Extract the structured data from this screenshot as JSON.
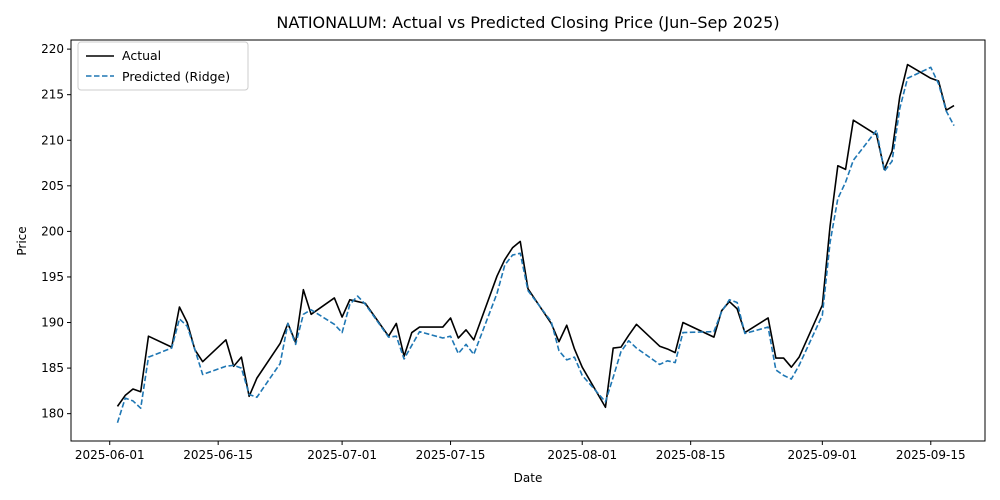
{
  "chart_data": {
    "type": "line",
    "title": "NATIONALUM: Actual vs Predicted Closing Price (Jun–Sep 2025)",
    "xlabel": "Date",
    "ylabel": "Price",
    "xlim": [
      "2025-05-27",
      "2025-09-22"
    ],
    "ylim": [
      177,
      221
    ],
    "x_ticks": [
      "2025-06-01",
      "2025-06-15",
      "2025-07-01",
      "2025-07-15",
      "2025-08-01",
      "2025-08-15",
      "2025-09-01",
      "2025-09-15"
    ],
    "y_ticks": [
      180,
      185,
      190,
      195,
      200,
      205,
      210,
      215,
      220
    ],
    "legend_position": "top-left",
    "grid": false,
    "x": [
      "2025-06-02",
      "2025-06-03",
      "2025-06-04",
      "2025-06-05",
      "2025-06-06",
      "2025-06-09",
      "2025-06-10",
      "2025-06-11",
      "2025-06-12",
      "2025-06-13",
      "2025-06-16",
      "2025-06-17",
      "2025-06-18",
      "2025-06-19",
      "2025-06-20",
      "2025-06-23",
      "2025-06-24",
      "2025-06-25",
      "2025-06-26",
      "2025-06-27",
      "2025-06-30",
      "2025-07-01",
      "2025-07-02",
      "2025-07-03",
      "2025-07-04",
      "2025-07-07",
      "2025-07-08",
      "2025-07-09",
      "2025-07-10",
      "2025-07-11",
      "2025-07-14",
      "2025-07-15",
      "2025-07-16",
      "2025-07-17",
      "2025-07-18",
      "2025-07-21",
      "2025-07-22",
      "2025-07-23",
      "2025-07-24",
      "2025-07-25",
      "2025-07-28",
      "2025-07-29",
      "2025-07-30",
      "2025-07-31",
      "2025-08-01",
      "2025-08-04",
      "2025-08-05",
      "2025-08-06",
      "2025-08-07",
      "2025-08-08",
      "2025-08-11",
      "2025-08-12",
      "2025-08-13",
      "2025-08-14",
      "2025-08-18",
      "2025-08-19",
      "2025-08-20",
      "2025-08-21",
      "2025-08-22",
      "2025-08-25",
      "2025-08-26",
      "2025-08-27",
      "2025-08-28",
      "2025-08-29",
      "2025-09-01",
      "2025-09-02",
      "2025-09-03",
      "2025-09-04",
      "2025-09-05",
      "2025-09-08",
      "2025-09-09",
      "2025-09-10",
      "2025-09-11",
      "2025-09-12",
      "2025-09-15",
      "2025-09-16",
      "2025-09-17",
      "2025-09-18"
    ],
    "series": [
      {
        "name": "Actual",
        "color": "#000000",
        "dash": "solid",
        "values": [
          180.8,
          182.0,
          182.7,
          182.4,
          188.5,
          187.3,
          191.7,
          190.0,
          187.0,
          185.7,
          188.1,
          185.2,
          186.2,
          181.9,
          183.9,
          187.7,
          189.9,
          187.8,
          193.6,
          190.9,
          192.7,
          190.6,
          192.5,
          192.3,
          192.1,
          188.5,
          189.9,
          186.3,
          188.9,
          189.5,
          189.5,
          190.5,
          188.3,
          189.2,
          188.1,
          195.1,
          196.9,
          198.2,
          198.9,
          193.7,
          189.9,
          187.9,
          189.7,
          187.1,
          185.1,
          180.7,
          187.2,
          187.3,
          188.6,
          189.8,
          187.4,
          187.1,
          186.7,
          190.0,
          188.4,
          191.3,
          192.3,
          191.5,
          188.9,
          190.5,
          186.1,
          186.1,
          185.1,
          186.2,
          191.9,
          200.6,
          207.2,
          206.8,
          212.2,
          210.6,
          206.8,
          208.8,
          214.8,
          218.3,
          216.8,
          216.5,
          213.3,
          213.8
        ]
      },
      {
        "name": "Predicted (Ridge)",
        "color": "#1f77b4",
        "dash": "dashed",
        "values": [
          179.0,
          181.7,
          181.4,
          180.6,
          186.2,
          187.2,
          190.4,
          189.6,
          187.0,
          184.3,
          185.2,
          185.3,
          185.0,
          182.1,
          181.8,
          185.5,
          189.9,
          187.6,
          190.9,
          191.4,
          189.8,
          188.9,
          192.0,
          192.9,
          192.0,
          188.4,
          188.5,
          186.0,
          187.5,
          189.0,
          188.3,
          188.5,
          186.6,
          187.6,
          186.5,
          193.2,
          196.3,
          197.4,
          197.6,
          193.5,
          190.1,
          186.9,
          185.9,
          186.2,
          184.2,
          181.3,
          184.0,
          186.8,
          188.0,
          187.2,
          185.4,
          185.8,
          185.6,
          188.9,
          189.0,
          191.2,
          192.5,
          192.2,
          188.8,
          189.5,
          184.8,
          184.2,
          183.8,
          185.3,
          190.8,
          198.8,
          203.6,
          205.4,
          207.8,
          211.1,
          206.6,
          207.7,
          213.5,
          216.8,
          218.0,
          216.2,
          213.2,
          211.6
        ]
      }
    ]
  }
}
